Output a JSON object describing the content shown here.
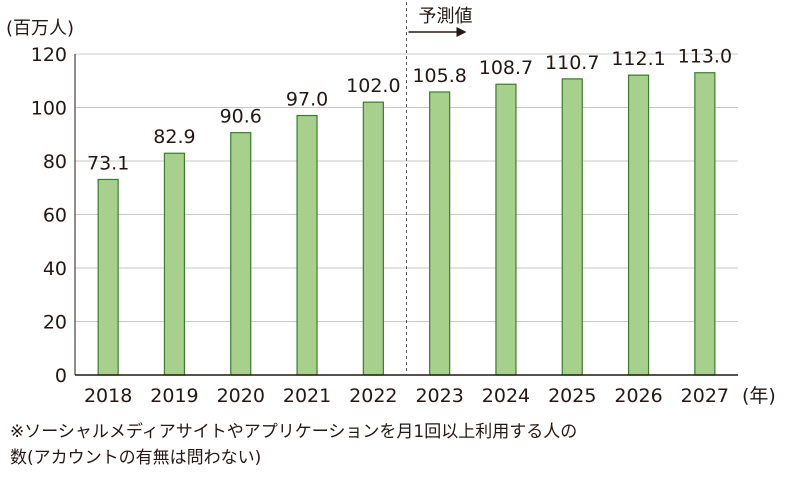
{
  "chart_data": {
    "type": "bar",
    "unit_label": "(百万人)",
    "x_unit_label": "(年)",
    "forecast_label": "予測値",
    "forecast_start_index": 5,
    "categories": [
      "2018",
      "2019",
      "2020",
      "2021",
      "2022",
      "2023",
      "2024",
      "2025",
      "2026",
      "2027"
    ],
    "values": [
      73.1,
      82.9,
      90.6,
      97.0,
      102.0,
      105.8,
      108.7,
      110.7,
      112.1,
      113.0
    ],
    "value_labels": [
      "73.1",
      "82.9",
      "90.6",
      "97.0",
      "102.0",
      "105.8",
      "108.7",
      "110.7",
      "112.1",
      "113.0"
    ],
    "ylim": [
      0,
      120
    ],
    "yticks": [
      0,
      20,
      40,
      60,
      80,
      100,
      120
    ],
    "grid": true,
    "bar_fill": "#a8d08d",
    "bar_stroke": "#3c7a2e",
    "grid_color": "#c8c8c8"
  },
  "footnote": {
    "line1": "※ソーシャルメディアサイトやアプリケーションを月1回以上利用する人の",
    "line2": "数(アカウントの有無は問わない)"
  }
}
